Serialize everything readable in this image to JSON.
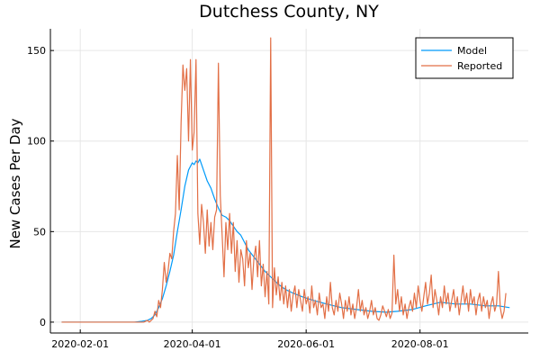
{
  "chart_data": {
    "type": "line",
    "title": "Dutchess County, NY",
    "xlabel": "",
    "ylabel": "New Cases Per Day",
    "x_axis_type": "date",
    "xlim": [
      "2020-01-16",
      "2020-09-28"
    ],
    "ylim": [
      -6,
      162
    ],
    "x_ticks": [
      "2020-02-01",
      "2020-04-01",
      "2020-06-01",
      "2020-08-01"
    ],
    "y_ticks": [
      0,
      50,
      100,
      150
    ],
    "grid": true,
    "legend_position": "top-right",
    "colors": {
      "Model": "#009af9",
      "Reported": "#e26f46"
    },
    "series": [
      {
        "name": "Model",
        "points": [
          [
            "2020-01-22",
            0
          ],
          [
            "2020-02-05",
            0
          ],
          [
            "2020-02-20",
            0
          ],
          [
            "2020-03-01",
            0
          ],
          [
            "2020-03-05",
            0.5
          ],
          [
            "2020-03-08",
            1
          ],
          [
            "2020-03-10",
            2
          ],
          [
            "2020-03-12",
            4
          ],
          [
            "2020-03-14",
            8
          ],
          [
            "2020-03-16",
            13
          ],
          [
            "2020-03-18",
            20
          ],
          [
            "2020-03-20",
            28
          ],
          [
            "2020-03-22",
            37
          ],
          [
            "2020-03-24",
            50
          ],
          [
            "2020-03-26",
            62
          ],
          [
            "2020-03-28",
            75
          ],
          [
            "2020-03-30",
            84
          ],
          [
            "2020-04-01",
            88
          ],
          [
            "2020-04-02",
            87
          ],
          [
            "2020-04-03",
            89
          ],
          [
            "2020-04-04",
            88
          ],
          [
            "2020-04-05",
            90
          ],
          [
            "2020-04-07",
            84
          ],
          [
            "2020-04-09",
            78
          ],
          [
            "2020-04-11",
            74
          ],
          [
            "2020-04-13",
            68
          ],
          [
            "2020-04-15",
            63
          ],
          [
            "2020-04-17",
            59
          ],
          [
            "2020-04-19",
            58
          ],
          [
            "2020-04-21",
            56
          ],
          [
            "2020-04-23",
            53
          ],
          [
            "2020-04-25",
            50
          ],
          [
            "2020-04-27",
            48
          ],
          [
            "2020-04-29",
            44
          ],
          [
            "2020-05-01",
            40
          ],
          [
            "2020-05-04",
            36
          ],
          [
            "2020-05-07",
            32
          ],
          [
            "2020-05-10",
            28
          ],
          [
            "2020-05-13",
            25
          ],
          [
            "2020-05-17",
            21
          ],
          [
            "2020-05-21",
            18
          ],
          [
            "2020-05-25",
            16
          ],
          [
            "2020-05-30",
            14
          ],
          [
            "2020-06-05",
            12
          ],
          [
            "2020-06-12",
            10
          ],
          [
            "2020-06-20",
            8
          ],
          [
            "2020-06-28",
            7
          ],
          [
            "2020-07-06",
            6
          ],
          [
            "2020-07-14",
            5.5
          ],
          [
            "2020-07-20",
            6
          ],
          [
            "2020-07-28",
            7
          ],
          [
            "2020-08-04",
            9
          ],
          [
            "2020-08-12",
            11
          ],
          [
            "2020-08-20",
            10
          ],
          [
            "2020-08-28",
            10
          ],
          [
            "2020-09-05",
            9
          ],
          [
            "2020-09-12",
            9
          ],
          [
            "2020-09-18",
            8
          ]
        ]
      },
      {
        "name": "Reported",
        "points": [
          [
            "2020-01-22",
            0
          ],
          [
            "2020-02-10",
            0
          ],
          [
            "2020-03-01",
            0
          ],
          [
            "2020-03-06",
            0
          ],
          [
            "2020-03-08",
            1
          ],
          [
            "2020-03-09",
            0
          ],
          [
            "2020-03-11",
            2
          ],
          [
            "2020-03-12",
            6
          ],
          [
            "2020-03-13",
            3
          ],
          [
            "2020-03-14",
            12
          ],
          [
            "2020-03-15",
            8
          ],
          [
            "2020-03-16",
            18
          ],
          [
            "2020-03-17",
            33
          ],
          [
            "2020-03-18",
            22
          ],
          [
            "2020-03-19",
            28
          ],
          [
            "2020-03-20",
            38
          ],
          [
            "2020-03-21",
            35
          ],
          [
            "2020-03-22",
            50
          ],
          [
            "2020-03-23",
            60
          ],
          [
            "2020-03-24",
            92
          ],
          [
            "2020-03-25",
            62
          ],
          [
            "2020-03-26",
            110
          ],
          [
            "2020-03-27",
            142
          ],
          [
            "2020-03-28",
            128
          ],
          [
            "2020-03-29",
            140
          ],
          [
            "2020-03-30",
            100
          ],
          [
            "2020-03-31",
            145
          ],
          [
            "2020-04-01",
            95
          ],
          [
            "2020-04-02",
            105
          ],
          [
            "2020-04-03",
            145
          ],
          [
            "2020-04-04",
            60
          ],
          [
            "2020-04-05",
            43
          ],
          [
            "2020-04-06",
            65
          ],
          [
            "2020-04-07",
            55
          ],
          [
            "2020-04-08",
            38
          ],
          [
            "2020-04-09",
            62
          ],
          [
            "2020-04-10",
            42
          ],
          [
            "2020-04-11",
            55
          ],
          [
            "2020-04-12",
            40
          ],
          [
            "2020-04-13",
            58
          ],
          [
            "2020-04-14",
            62
          ],
          [
            "2020-04-15",
            143
          ],
          [
            "2020-04-16",
            70
          ],
          [
            "2020-04-17",
            48
          ],
          [
            "2020-04-18",
            25
          ],
          [
            "2020-04-19",
            55
          ],
          [
            "2020-04-20",
            40
          ],
          [
            "2020-04-21",
            60
          ],
          [
            "2020-04-22",
            38
          ],
          [
            "2020-04-23",
            55
          ],
          [
            "2020-04-24",
            28
          ],
          [
            "2020-04-25",
            45
          ],
          [
            "2020-04-26",
            22
          ],
          [
            "2020-04-27",
            40
          ],
          [
            "2020-04-28",
            35
          ],
          [
            "2020-04-29",
            20
          ],
          [
            "2020-04-30",
            45
          ],
          [
            "2020-05-01",
            30
          ],
          [
            "2020-05-02",
            38
          ],
          [
            "2020-05-03",
            18
          ],
          [
            "2020-05-04",
            35
          ],
          [
            "2020-05-05",
            42
          ],
          [
            "2020-05-06",
            25
          ],
          [
            "2020-05-07",
            45
          ],
          [
            "2020-05-08",
            20
          ],
          [
            "2020-05-09",
            32
          ],
          [
            "2020-05-10",
            14
          ],
          [
            "2020-05-11",
            28
          ],
          [
            "2020-05-12",
            10
          ],
          [
            "2020-05-13",
            157
          ],
          [
            "2020-05-14",
            8
          ],
          [
            "2020-05-15",
            30
          ],
          [
            "2020-05-16",
            15
          ],
          [
            "2020-05-17",
            25
          ],
          [
            "2020-05-18",
            12
          ],
          [
            "2020-05-19",
            22
          ],
          [
            "2020-05-20",
            10
          ],
          [
            "2020-05-21",
            20
          ],
          [
            "2020-05-22",
            8
          ],
          [
            "2020-05-23",
            18
          ],
          [
            "2020-05-24",
            6
          ],
          [
            "2020-05-25",
            15
          ],
          [
            "2020-05-26",
            20
          ],
          [
            "2020-05-27",
            8
          ],
          [
            "2020-05-28",
            18
          ],
          [
            "2020-05-29",
            12
          ],
          [
            "2020-05-30",
            6
          ],
          [
            "2020-05-31",
            18
          ],
          [
            "2020-06-01",
            10
          ],
          [
            "2020-06-02",
            14
          ],
          [
            "2020-06-03",
            5
          ],
          [
            "2020-06-04",
            20
          ],
          [
            "2020-06-05",
            8
          ],
          [
            "2020-06-06",
            12
          ],
          [
            "2020-06-07",
            4
          ],
          [
            "2020-06-08",
            16
          ],
          [
            "2020-06-09",
            8
          ],
          [
            "2020-06-10",
            10
          ],
          [
            "2020-06-11",
            2
          ],
          [
            "2020-06-12",
            14
          ],
          [
            "2020-06-13",
            6
          ],
          [
            "2020-06-14",
            22
          ],
          [
            "2020-06-15",
            8
          ],
          [
            "2020-06-16",
            4
          ],
          [
            "2020-06-17",
            12
          ],
          [
            "2020-06-18",
            6
          ],
          [
            "2020-06-19",
            16
          ],
          [
            "2020-06-20",
            10
          ],
          [
            "2020-06-21",
            2
          ],
          [
            "2020-06-22",
            12
          ],
          [
            "2020-06-23",
            6
          ],
          [
            "2020-06-24",
            14
          ],
          [
            "2020-06-25",
            4
          ],
          [
            "2020-06-26",
            10
          ],
          [
            "2020-06-27",
            2
          ],
          [
            "2020-06-28",
            8
          ],
          [
            "2020-06-29",
            18
          ],
          [
            "2020-06-30",
            6
          ],
          [
            "2020-07-01",
            12
          ],
          [
            "2020-07-02",
            4
          ],
          [
            "2020-07-03",
            8
          ],
          [
            "2020-07-04",
            2
          ],
          [
            "2020-07-05",
            6
          ],
          [
            "2020-07-06",
            12
          ],
          [
            "2020-07-07",
            4
          ],
          [
            "2020-07-08",
            8
          ],
          [
            "2020-07-09",
            2
          ],
          [
            "2020-07-10",
            1
          ],
          [
            "2020-07-11",
            4
          ],
          [
            "2020-07-12",
            9
          ],
          [
            "2020-07-13",
            6
          ],
          [
            "2020-07-14",
            3
          ],
          [
            "2020-07-15",
            7
          ],
          [
            "2020-07-16",
            2
          ],
          [
            "2020-07-17",
            5
          ],
          [
            "2020-07-18",
            37
          ],
          [
            "2020-07-19",
            10
          ],
          [
            "2020-07-20",
            18
          ],
          [
            "2020-07-21",
            6
          ],
          [
            "2020-07-22",
            14
          ],
          [
            "2020-07-23",
            4
          ],
          [
            "2020-07-24",
            10
          ],
          [
            "2020-07-25",
            2
          ],
          [
            "2020-07-26",
            8
          ],
          [
            "2020-07-27",
            12
          ],
          [
            "2020-07-28",
            6
          ],
          [
            "2020-07-29",
            16
          ],
          [
            "2020-07-30",
            8
          ],
          [
            "2020-07-31",
            20
          ],
          [
            "2020-08-01",
            12
          ],
          [
            "2020-08-02",
            6
          ],
          [
            "2020-08-03",
            14
          ],
          [
            "2020-08-04",
            22
          ],
          [
            "2020-08-05",
            10
          ],
          [
            "2020-08-06",
            16
          ],
          [
            "2020-08-07",
            26
          ],
          [
            "2020-08-08",
            8
          ],
          [
            "2020-08-09",
            18
          ],
          [
            "2020-08-10",
            12
          ],
          [
            "2020-08-11",
            4
          ],
          [
            "2020-08-12",
            14
          ],
          [
            "2020-08-13",
            8
          ],
          [
            "2020-08-14",
            20
          ],
          [
            "2020-08-15",
            10
          ],
          [
            "2020-08-16",
            16
          ],
          [
            "2020-08-17",
            6
          ],
          [
            "2020-08-18",
            12
          ],
          [
            "2020-08-19",
            18
          ],
          [
            "2020-08-20",
            8
          ],
          [
            "2020-08-21",
            14
          ],
          [
            "2020-08-22",
            4
          ],
          [
            "2020-08-23",
            12
          ],
          [
            "2020-08-24",
            20
          ],
          [
            "2020-08-25",
            10
          ],
          [
            "2020-08-26",
            16
          ],
          [
            "2020-08-27",
            6
          ],
          [
            "2020-08-28",
            18
          ],
          [
            "2020-08-29",
            10
          ],
          [
            "2020-08-30",
            14
          ],
          [
            "2020-08-31",
            4
          ],
          [
            "2020-09-01",
            12
          ],
          [
            "2020-09-02",
            16
          ],
          [
            "2020-09-03",
            6
          ],
          [
            "2020-09-04",
            14
          ],
          [
            "2020-09-05",
            8
          ],
          [
            "2020-09-06",
            12
          ],
          [
            "2020-09-07",
            2
          ],
          [
            "2020-09-08",
            10
          ],
          [
            "2020-09-09",
            14
          ],
          [
            "2020-09-10",
            6
          ],
          [
            "2020-09-11",
            10
          ],
          [
            "2020-09-12",
            28
          ],
          [
            "2020-09-13",
            8
          ],
          [
            "2020-09-14",
            2
          ],
          [
            "2020-09-15",
            6
          ],
          [
            "2020-09-16",
            16
          ]
        ]
      }
    ]
  }
}
